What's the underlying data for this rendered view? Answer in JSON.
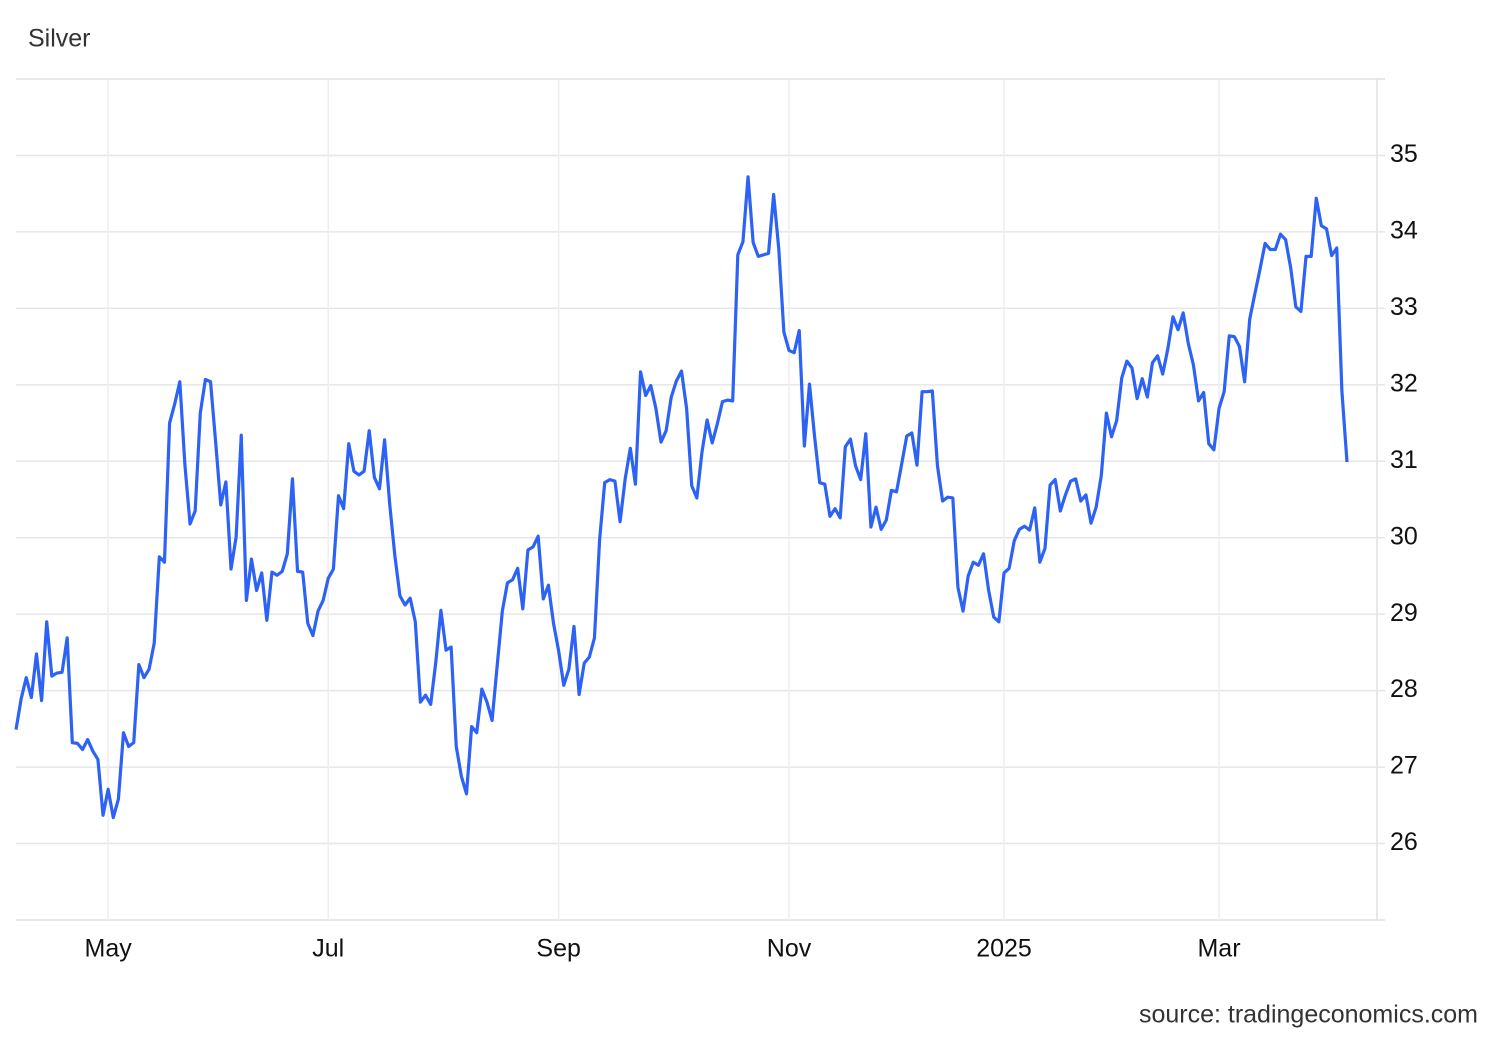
{
  "chart_data": {
    "type": "line",
    "title": "Silver",
    "source": "source: tradingeconomics.com",
    "categories": [
      null,
      null,
      null,
      null,
      null,
      null,
      null,
      null,
      null,
      null,
      null,
      null,
      null,
      null,
      null,
      null,
      null,
      null,
      "May",
      null,
      null,
      null,
      null,
      null,
      null,
      null,
      null,
      null,
      null,
      null,
      null,
      null,
      null,
      null,
      null,
      null,
      null,
      null,
      null,
      null,
      null,
      null,
      null,
      null,
      null,
      null,
      null,
      null,
      null,
      null,
      null,
      null,
      null,
      null,
      null,
      null,
      null,
      null,
      null,
      null,
      null,
      "Jul",
      null,
      null,
      null,
      null,
      null,
      null,
      null,
      null,
      null,
      null,
      null,
      null,
      null,
      null,
      null,
      null,
      null,
      null,
      null,
      null,
      null,
      null,
      null,
      null,
      null,
      null,
      null,
      null,
      null,
      null,
      null,
      null,
      null,
      null,
      null,
      null,
      null,
      null,
      null,
      null,
      null,
      null,
      null,
      null,
      "Sep",
      null,
      null,
      null,
      null,
      null,
      null,
      null,
      null,
      null,
      null,
      null,
      null,
      null,
      null,
      null,
      null,
      null,
      null,
      null,
      null,
      null,
      null,
      null,
      null,
      null,
      null,
      null,
      null,
      null,
      null,
      null,
      null,
      null,
      null,
      null,
      null,
      null,
      null,
      null,
      null,
      null,
      null,
      null,
      null,
      "Nov",
      null,
      null,
      null,
      null,
      null,
      null,
      null,
      null,
      null,
      null,
      null,
      null,
      null,
      null,
      null,
      null,
      null,
      null,
      null,
      null,
      null,
      null,
      null,
      null,
      null,
      null,
      null,
      null,
      null,
      null,
      null,
      null,
      null,
      null,
      null,
      null,
      null,
      null,
      null,
      null,
      null,
      "2025",
      null,
      null,
      null,
      null,
      null,
      null,
      null,
      null,
      null,
      null,
      null,
      null,
      null,
      null,
      null,
      null,
      null,
      null,
      null,
      null,
      null,
      null,
      null,
      null,
      null,
      null,
      null,
      null,
      null,
      null,
      null,
      null,
      null,
      null,
      null,
      null,
      null,
      null,
      null,
      null,
      null,
      "Mar",
      null,
      null,
      null,
      null,
      null,
      null,
      null,
      null,
      null,
      null,
      null,
      null,
      null,
      null,
      null,
      null,
      null,
      null,
      null,
      null,
      null,
      null,
      null,
      null,
      null
    ],
    "values": [
      27.49,
      27.89,
      28.17,
      27.91,
      28.48,
      27.87,
      28.9,
      28.19,
      28.23,
      28.24,
      28.69,
      27.32,
      27.31,
      27.23,
      27.36,
      27.21,
      27.1,
      26.37,
      26.71,
      26.34,
      26.58,
      27.45,
      27.27,
      27.32,
      28.34,
      28.17,
      28.28,
      28.62,
      29.75,
      29.68,
      31.5,
      31.75,
      32.04,
      30.95,
      30.18,
      30.35,
      31.63,
      32.07,
      32.04,
      31.25,
      30.43,
      30.73,
      29.59,
      30.01,
      31.34,
      29.18,
      29.72,
      29.31,
      29.54,
      28.92,
      29.55,
      29.51,
      29.56,
      29.79,
      30.77,
      29.56,
      29.55,
      28.88,
      28.72,
      29.04,
      29.18,
      29.47,
      29.59,
      30.55,
      30.38,
      31.23,
      30.87,
      30.82,
      30.87,
      31.4,
      30.79,
      30.64,
      31.28,
      30.44,
      29.77,
      29.24,
      29.12,
      29.21,
      28.9,
      27.85,
      27.94,
      27.82,
      28.37,
      29.05,
      28.53,
      28.57,
      27.27,
      26.88,
      26.65,
      27.53,
      27.45,
      28.02,
      27.85,
      27.61,
      28.33,
      29.04,
      29.41,
      29.45,
      29.6,
      29.07,
      29.84,
      29.88,
      30.02,
      29.2,
      29.38,
      28.88,
      28.52,
      28.07,
      28.28,
      28.84,
      27.95,
      28.36,
      28.44,
      28.69,
      29.97,
      30.72,
      30.76,
      30.74,
      30.21,
      30.77,
      31.17,
      30.7,
      32.17,
      31.86,
      31.99,
      31.69,
      31.25,
      31.4,
      31.84,
      32.05,
      32.18,
      31.69,
      30.68,
      30.52,
      31.12,
      31.54,
      31.24,
      31.49,
      31.78,
      31.8,
      31.79,
      33.7,
      33.87,
      34.72,
      33.86,
      33.68,
      33.7,
      33.72,
      34.49,
      33.78,
      32.69,
      32.45,
      32.42,
      32.71,
      31.2,
      32.01,
      31.32,
      30.72,
      30.7,
      30.28,
      30.38,
      30.26,
      31.19,
      31.29,
      30.94,
      30.76,
      31.36,
      30.14,
      30.4,
      30.11,
      30.23,
      30.62,
      30.6,
      30.96,
      31.33,
      31.37,
      30.95,
      31.91,
      31.91,
      31.92,
      30.94,
      30.48,
      30.53,
      30.52,
      29.35,
      29.04,
      29.5,
      29.68,
      29.64,
      29.79,
      29.31,
      28.96,
      28.9,
      29.54,
      29.6,
      29.96,
      30.11,
      30.15,
      30.1,
      30.39,
      29.68,
      29.86,
      30.69,
      30.76,
      30.35,
      30.56,
      30.74,
      30.77,
      30.48,
      30.56,
      30.19,
      30.4,
      30.81,
      31.63,
      31.32,
      31.53,
      32.09,
      32.31,
      32.22,
      31.82,
      32.08,
      31.84,
      32.29,
      32.38,
      32.14,
      32.47,
      32.89,
      32.72,
      32.94,
      32.54,
      32.26,
      31.79,
      31.9,
      31.23,
      31.15,
      31.69,
      31.91,
      32.64,
      32.63,
      32.5,
      32.04,
      32.86,
      33.19,
      33.51,
      33.85,
      33.77,
      33.77,
      33.97,
      33.9,
      33.53,
      33.02,
      32.96,
      33.68,
      33.68,
      34.44,
      34.08,
      34.04,
      33.69,
      33.79,
      31.92,
      30.99
    ],
    "color": "#2c62f5",
    "ylim": [
      25,
      36
    ],
    "yticks": [
      26,
      27,
      28,
      29,
      30,
      31,
      32,
      33,
      34,
      35
    ],
    "grid": true
  }
}
